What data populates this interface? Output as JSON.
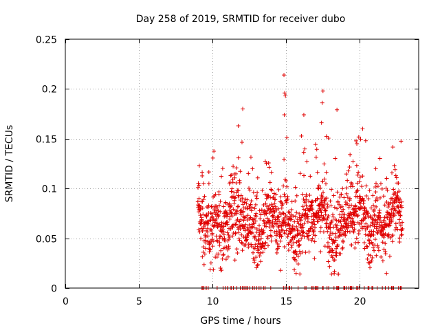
{
  "chart_data": {
    "type": "scatter",
    "title": "Day 258 of 2019, SRMTID for receiver dubo",
    "xlabel": "GPS time / hours",
    "ylabel": "SRMTID / TECUs",
    "xlim": [
      0,
      24
    ],
    "ylim": [
      0,
      0.25
    ],
    "xticks": [
      0,
      5,
      10,
      15,
      20
    ],
    "xtick_labels": [
      "0",
      "5",
      "10",
      "15",
      "20"
    ],
    "yticks": [
      0,
      0.05,
      0.1,
      0.15,
      0.2,
      0.25
    ],
    "ytick_labels": [
      "0",
      "0.05",
      "0.1",
      "0.15",
      "0.2",
      "0.25"
    ],
    "grid": true,
    "marker": "+",
    "series_color": "#e00000",
    "series": [
      {
        "name": "SRMTID",
        "x_range": [
          9.0,
          22.9
        ],
        "typical_y_range": [
          0.03,
          0.1
        ],
        "notable_points": [
          {
            "x": 14.85,
            "y": 0.214
          },
          {
            "x": 14.9,
            "y": 0.196
          },
          {
            "x": 14.95,
            "y": 0.193
          },
          {
            "x": 17.5,
            "y": 0.198
          },
          {
            "x": 17.45,
            "y": 0.186
          },
          {
            "x": 18.45,
            "y": 0.179
          },
          {
            "x": 12.05,
            "y": 0.18
          },
          {
            "x": 16.2,
            "y": 0.174
          },
          {
            "x": 14.88,
            "y": 0.174
          },
          {
            "x": 11.75,
            "y": 0.163
          },
          {
            "x": 17.4,
            "y": 0.166
          },
          {
            "x": 20.4,
            "y": 0.148
          },
          {
            "x": 19.8,
            "y": 0.145
          },
          {
            "x": 22.4,
            "y": 0.119
          },
          {
            "x": 9.1,
            "y": 0.123
          }
        ],
        "zero_markers_x_range": [
          9.0,
          22.9
        ]
      }
    ]
  }
}
